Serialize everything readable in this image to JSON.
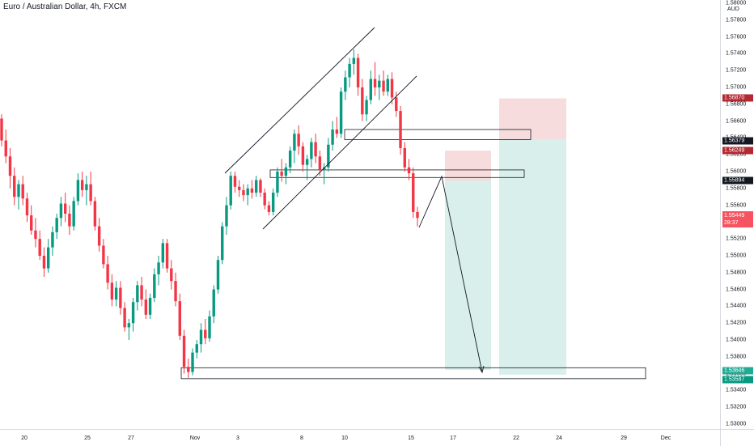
{
  "header": {
    "title": "Euro / Australian Dollar, 4h, FXCM"
  },
  "axis": {
    "unit": "AUD",
    "price_ticks": [
      "1.58000",
      "1.57800",
      "1.57600",
      "1.57400",
      "1.57200",
      "1.57000",
      "1.56800",
      "1.56600",
      "1.56400",
      "1.56200",
      "1.56000",
      "1.55800",
      "1.55600",
      "1.55400",
      "1.55200",
      "1.55000",
      "1.54800",
      "1.54600",
      "1.54400",
      "1.54200",
      "1.54000",
      "1.53800",
      "1.53600",
      "1.53400",
      "1.53200",
      "1.53000"
    ],
    "time_ticks": [
      "20",
      "25",
      "27",
      "Nov",
      "3",
      "8",
      "10",
      "15",
      "17",
      "22",
      "24",
      "29",
      "Dec"
    ]
  },
  "price_tags": [
    {
      "value": "1.56870",
      "color": "#b22833"
    },
    {
      "value": "1.56379",
      "color": "#131722"
    },
    {
      "value": "1.56249",
      "color": "#b22833"
    },
    {
      "value": "1.55894",
      "color": "#131722"
    },
    {
      "value": "1.55449",
      "sub": "28:37",
      "color": "#f7525f"
    },
    {
      "value": "1.53646",
      "color": "#22ab94"
    },
    {
      "value": "1.53587",
      "color": "#089981"
    }
  ],
  "colors": {
    "up": "#089981",
    "down": "#f23645",
    "profit_zone": "#d8efec",
    "loss_zone": "#f6dcdd"
  },
  "chart_data": {
    "type": "candlestick",
    "title": "Euro / Australian Dollar, 4h, FXCM",
    "ylim": [
      1.53,
      1.581
    ],
    "current_price": 1.55449,
    "candles": [
      [
        1.5663,
        1.5668,
        1.563,
        1.5637
      ],
      [
        1.5637,
        1.565,
        1.561,
        1.5618
      ],
      [
        1.5618,
        1.5628,
        1.558,
        1.5595
      ],
      [
        1.5595,
        1.5605,
        1.556,
        1.557
      ],
      [
        1.557,
        1.559,
        1.5555,
        1.5585
      ],
      [
        1.5585,
        1.5595,
        1.556,
        1.5568
      ],
      [
        1.5568,
        1.5575,
        1.554,
        1.5548
      ],
      [
        1.5548,
        1.556,
        1.5525,
        1.553
      ],
      [
        1.553,
        1.5545,
        1.551,
        1.552
      ],
      [
        1.552,
        1.553,
        1.5495,
        1.55
      ],
      [
        1.55,
        1.551,
        1.5475,
        1.5485
      ],
      [
        1.5485,
        1.552,
        1.548,
        1.551
      ],
      [
        1.551,
        1.5535,
        1.55,
        1.5528
      ],
      [
        1.5528,
        1.555,
        1.552,
        1.5545
      ],
      [
        1.5545,
        1.557,
        1.5535,
        1.5562
      ],
      [
        1.5562,
        1.5575,
        1.554,
        1.555
      ],
      [
        1.555,
        1.556,
        1.5525,
        1.5535
      ],
      [
        1.5535,
        1.557,
        1.553,
        1.5565
      ],
      [
        1.5565,
        1.5598,
        1.556,
        1.559
      ],
      [
        1.559,
        1.56,
        1.557,
        1.5578
      ],
      [
        1.5578,
        1.5595,
        1.556,
        1.5585
      ],
      [
        1.5585,
        1.56,
        1.556,
        1.5565
      ],
      [
        1.5565,
        1.557,
        1.553,
        1.5535
      ],
      [
        1.5535,
        1.5545,
        1.5505,
        1.5512
      ],
      [
        1.5512,
        1.552,
        1.5485,
        1.549
      ],
      [
        1.549,
        1.55,
        1.546,
        1.5468
      ],
      [
        1.5468,
        1.5478,
        1.544,
        1.5448
      ],
      [
        1.5448,
        1.547,
        1.544,
        1.5462
      ],
      [
        1.5462,
        1.547,
        1.543,
        1.5438
      ],
      [
        1.5438,
        1.5445,
        1.541,
        1.5415
      ],
      [
        1.5415,
        1.5425,
        1.54,
        1.542
      ],
      [
        1.542,
        1.545,
        1.541,
        1.5445
      ],
      [
        1.5445,
        1.547,
        1.5435,
        1.5465
      ],
      [
        1.5465,
        1.5475,
        1.544,
        1.5448
      ],
      [
        1.5448,
        1.546,
        1.5425,
        1.543
      ],
      [
        1.543,
        1.5455,
        1.5425,
        1.545
      ],
      [
        1.545,
        1.5485,
        1.5445,
        1.5478
      ],
      [
        1.5478,
        1.55,
        1.5465,
        1.5492
      ],
      [
        1.5492,
        1.552,
        1.5485,
        1.5515
      ],
      [
        1.5515,
        1.552,
        1.548,
        1.5485
      ],
      [
        1.5485,
        1.5495,
        1.546,
        1.547
      ],
      [
        1.547,
        1.548,
        1.544,
        1.5446
      ],
      [
        1.5446,
        1.5455,
        1.54,
        1.5405
      ],
      [
        1.5405,
        1.5412,
        1.536,
        1.5368
      ],
      [
        1.5368,
        1.5378,
        1.5355,
        1.5362
      ],
      [
        1.5362,
        1.539,
        1.5358,
        1.5385
      ],
      [
        1.5385,
        1.54,
        1.5378,
        1.5395
      ],
      [
        1.5395,
        1.542,
        1.5385,
        1.5412
      ],
      [
        1.5412,
        1.5425,
        1.5395,
        1.5402
      ],
      [
        1.5402,
        1.5435,
        1.5398,
        1.5428
      ],
      [
        1.5428,
        1.5465,
        1.542,
        1.546
      ],
      [
        1.546,
        1.55,
        1.5455,
        1.5495
      ],
      [
        1.5495,
        1.554,
        1.549,
        1.5535
      ],
      [
        1.5535,
        1.557,
        1.5525,
        1.556
      ],
      [
        1.556,
        1.56,
        1.5555,
        1.5595
      ],
      [
        1.5595,
        1.56,
        1.5575,
        1.5582
      ],
      [
        1.5582,
        1.559,
        1.557,
        1.5578
      ],
      [
        1.5578,
        1.5585,
        1.5565,
        1.5572
      ],
      [
        1.5572,
        1.5585,
        1.556,
        1.558
      ],
      [
        1.558,
        1.559,
        1.5568,
        1.5575
      ],
      [
        1.5575,
        1.5595,
        1.557,
        1.559
      ],
      [
        1.559,
        1.5592,
        1.557,
        1.5575
      ],
      [
        1.5575,
        1.558,
        1.5555,
        1.556
      ],
      [
        1.556,
        1.5565,
        1.5548,
        1.5552
      ],
      [
        1.5552,
        1.558,
        1.5548,
        1.5575
      ],
      [
        1.5575,
        1.5605,
        1.557,
        1.56
      ],
      [
        1.56,
        1.5615,
        1.5588,
        1.5595
      ],
      [
        1.5595,
        1.561,
        1.5585,
        1.5605
      ],
      [
        1.5605,
        1.563,
        1.5598,
        1.5625
      ],
      [
        1.5625,
        1.565,
        1.561,
        1.5645
      ],
      [
        1.5645,
        1.5655,
        1.562,
        1.563
      ],
      [
        1.563,
        1.5635,
        1.56,
        1.5608
      ],
      [
        1.5608,
        1.562,
        1.559,
        1.5615
      ],
      [
        1.5615,
        1.564,
        1.5605,
        1.5635
      ],
      [
        1.5635,
        1.5645,
        1.561,
        1.5618
      ],
      [
        1.5618,
        1.5625,
        1.5595,
        1.5602
      ],
      [
        1.5602,
        1.561,
        1.5585,
        1.5605
      ],
      [
        1.5605,
        1.564,
        1.56,
        1.5632
      ],
      [
        1.5632,
        1.566,
        1.5625,
        1.565
      ],
      [
        1.565,
        1.5665,
        1.564,
        1.5645
      ],
      [
        1.5645,
        1.57,
        1.564,
        1.5695
      ],
      [
        1.5695,
        1.572,
        1.5685,
        1.5712
      ],
      [
        1.5712,
        1.5735,
        1.57,
        1.5728
      ],
      [
        1.5728,
        1.5745,
        1.5715,
        1.5735
      ],
      [
        1.5735,
        1.574,
        1.569,
        1.57
      ],
      [
        1.57,
        1.571,
        1.566,
        1.5668
      ],
      [
        1.5668,
        1.569,
        1.566,
        1.5685
      ],
      [
        1.5685,
        1.572,
        1.568,
        1.571
      ],
      [
        1.571,
        1.573,
        1.569,
        1.57
      ],
      [
        1.57,
        1.5715,
        1.5685,
        1.5708
      ],
      [
        1.5708,
        1.572,
        1.569,
        1.5695
      ],
      [
        1.5695,
        1.5715,
        1.569,
        1.571
      ],
      [
        1.571,
        1.5718,
        1.568,
        1.5688
      ],
      [
        1.5688,
        1.5695,
        1.5665,
        1.5672
      ],
      [
        1.5672,
        1.5678,
        1.562,
        1.5628
      ],
      [
        1.5628,
        1.5635,
        1.56,
        1.5605
      ],
      [
        1.5605,
        1.5615,
        1.559,
        1.5598
      ],
      [
        1.5598,
        1.5605,
        1.5545,
        1.5552
      ],
      [
        1.5552,
        1.5558,
        1.5535,
        1.5545
      ]
    ]
  },
  "drawings": {
    "channel": {
      "upper": [
        [
          1.5602,
          1.5775
        ]
      ],
      "lower": [
        [
          1.5535,
          1.572
        ]
      ]
    },
    "zones": [
      {
        "type": "box",
        "top": 1.565,
        "bottom": 1.5638
      },
      {
        "type": "box",
        "top": 1.5602,
        "bottom": 1.5593
      },
      {
        "type": "box",
        "top": 1.5367,
        "bottom": 1.5354
      }
    ],
    "positions": [
      {
        "entry": 1.56379,
        "stop": 1.5687,
        "target": 1.53587
      },
      {
        "entry": 1.55894,
        "stop": 1.56249,
        "target": 1.53646
      }
    ]
  }
}
